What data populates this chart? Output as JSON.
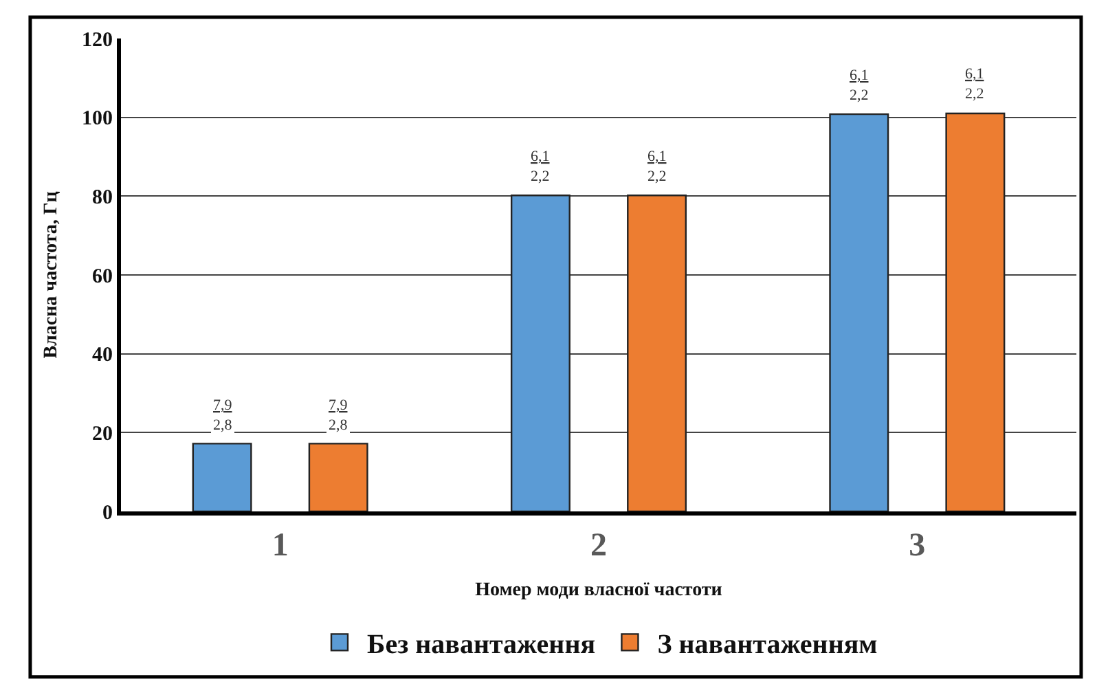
{
  "chart_data": {
    "type": "bar",
    "xlabel": "Номер моди власної частоти",
    "ylabel": "Власна частота, Гц",
    "categories": [
      "1",
      "2",
      "3"
    ],
    "series": [
      {
        "name": "Без навантаження",
        "color": "#5b9bd5",
        "values": [
          17.2,
          80.2,
          100.8
        ]
      },
      {
        "name": "З навантаженням",
        "color": "#ed7d31",
        "values": [
          17.2,
          80.2,
          101.0
        ]
      }
    ],
    "annotations": [
      "7,9\n2,8",
      "7,9\n2,8",
      "6,1\n2,2",
      "6,1\n2,2",
      "6,1\n2,2",
      "6,1\n2,2"
    ],
    "ylim": [
      0,
      120
    ],
    "yticks": [
      0,
      20,
      40,
      60,
      80,
      100,
      120
    ],
    "grid": "y",
    "legend": "bottom"
  }
}
